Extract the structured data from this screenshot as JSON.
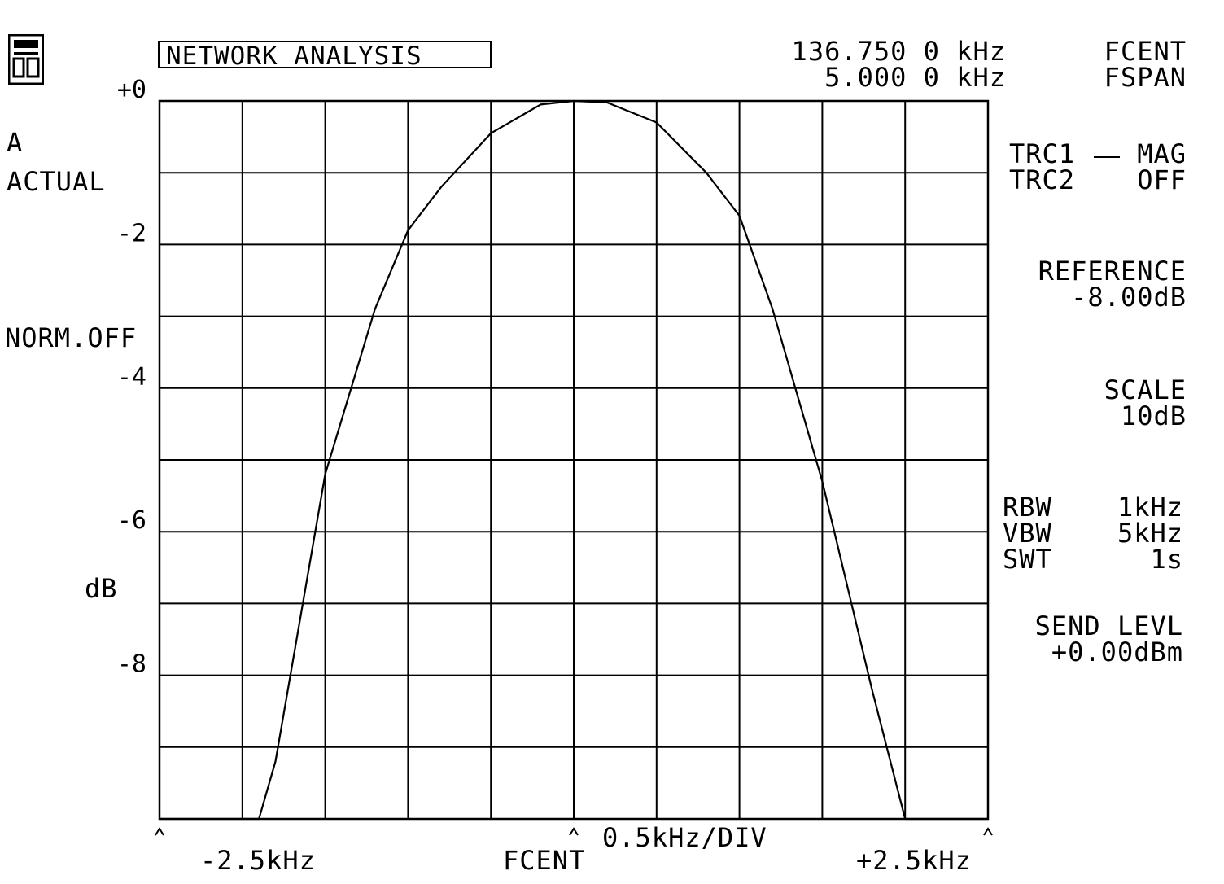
{
  "header": {
    "title": "NETWORK ANALYSIS",
    "center_freq": "136.750 0 kHz",
    "center_label": "FCENT",
    "span_freq": "5.000 0 kHz",
    "span_label": "FSPAN"
  },
  "left_panel": {
    "trace_id": "A",
    "trace_mode": "ACTUAL",
    "norm": "NORM.OFF",
    "unit": "dB"
  },
  "right_panel": {
    "trc1_label": "TRC1",
    "trc1_value": "MAG",
    "trc2_label": "TRC2",
    "trc2_value": "OFF",
    "reference_label": "REFERENCE",
    "reference_value": "-8.00dB",
    "scale_label": "SCALE",
    "scale_value": "10dB",
    "rbw_label": "RBW",
    "rbw_value": "1kHz",
    "vbw_label": "VBW",
    "vbw_value": "5kHz",
    "swt_label": "SWT",
    "swt_value": "1s",
    "send_label": "SEND LEVL",
    "send_value": "+0.00dBm"
  },
  "footer": {
    "left": "-2.5kHz",
    "center": "FCENT",
    "right": "+2.5kHz",
    "div": "0.5kHz/DIV"
  },
  "chart_data": {
    "type": "line",
    "title": "NETWORK ANALYSIS",
    "xlabel": "0.5kHz/DIV",
    "ylabel": "dB",
    "xlim": [
      -2.5,
      2.5
    ],
    "ylim": [
      -10,
      0
    ],
    "grid": true,
    "y_ticks": [
      0,
      -2,
      -4,
      -6,
      -8
    ],
    "y_tick_labels": [
      "+0",
      "-2",
      "-4",
      "-6",
      "-8"
    ],
    "x_tick_labels": [
      "-2.5kHz",
      "FCENT",
      "+2.5kHz"
    ],
    "series": [
      {
        "x": [
          -2.5,
          -1.9,
          -1.8,
          -1.5,
          -1.2,
          -1.0,
          -0.8,
          -0.5,
          -0.2,
          0.0,
          0.2,
          0.5,
          0.8,
          1.0,
          1.2,
          1.5,
          1.8,
          2.0,
          2.1,
          2.5
        ],
        "y": [
          -10,
          -10,
          -9.2,
          -5.2,
          -2.9,
          -1.8,
          -1.2,
          -0.45,
          -0.05,
          0.0,
          -0.02,
          -0.3,
          -1.0,
          -1.6,
          -2.9,
          -5.3,
          -8.2,
          -10,
          -10,
          -10
        ]
      }
    ]
  }
}
